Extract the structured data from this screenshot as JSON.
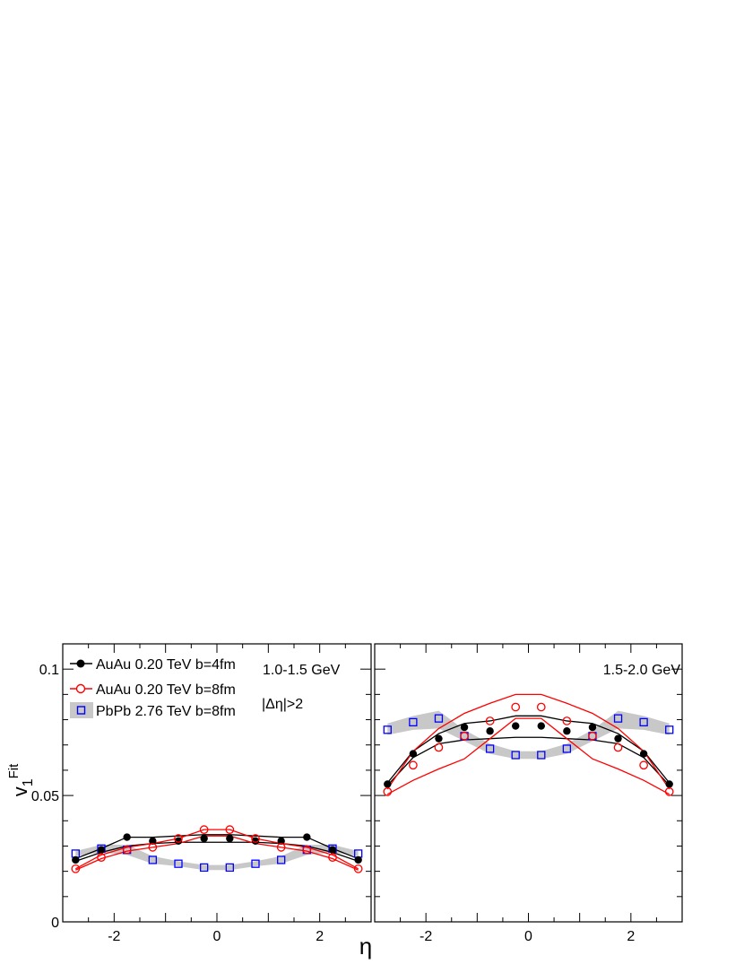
{
  "figure": {
    "ylabel_base": "v",
    "ylabel_sub": "1",
    "ylabel_sup": "Fit",
    "xlabel": "η"
  },
  "legend": [
    {
      "label": "AuAu 0.20 TeV b=4fm",
      "color": "#000000",
      "marker": "filled-circle"
    },
    {
      "label": "AuAu 0.20 TeV b=8fm",
      "color": "#ff0000",
      "marker": "open-circle"
    },
    {
      "label": "PbPb 2.76 TeV b=8fm",
      "color": "#0000ff",
      "marker": "open-square",
      "band_color": "#c8c8c8"
    }
  ],
  "chart_data": [
    {
      "type": "scatter",
      "panel": "left",
      "annotations": [
        "1.0-1.5 GeV",
        "|Δη|>2"
      ],
      "xlim": [
        -3,
        3
      ],
      "ylim": [
        0,
        0.11
      ],
      "x_ticks": [
        "-2",
        "0",
        "2"
      ],
      "y_ticks": [
        "0",
        "0.05",
        "0.1"
      ],
      "grid": false,
      "legend_position": "top-left",
      "x": [
        -2.75,
        -2.25,
        -1.75,
        -1.25,
        -0.75,
        -0.25,
        0.25,
        0.75,
        1.25,
        1.75,
        2.25,
        2.75
      ],
      "series": [
        {
          "name": "AuAu 0.20 TeV b=4fm",
          "values": [
            0.0245,
            0.0285,
            0.0335,
            0.032,
            0.032,
            0.033,
            0.033,
            0.032,
            0.032,
            0.0335,
            0.0285,
            0.0245
          ],
          "band_low": [
            0.024,
            0.0275,
            0.03,
            0.031,
            0.0315,
            0.0315,
            0.0315,
            0.0315,
            0.031,
            0.03,
            0.0275,
            0.024
          ],
          "band_high": [
            0.025,
            0.029,
            0.0335,
            0.0335,
            0.034,
            0.0345,
            0.0345,
            0.034,
            0.0335,
            0.0335,
            0.029,
            0.025
          ]
        },
        {
          "name": "AuAu 0.20 TeV b=8fm",
          "values": [
            0.021,
            0.0255,
            0.0285,
            0.0295,
            0.033,
            0.0365,
            0.0365,
            0.033,
            0.0295,
            0.0285,
            0.0255,
            0.021
          ],
          "band_low": [
            0.0205,
            0.025,
            0.028,
            0.0295,
            0.031,
            0.034,
            0.034,
            0.031,
            0.0295,
            0.028,
            0.025,
            0.0205
          ],
          "band_high": [
            0.021,
            0.0265,
            0.0295,
            0.031,
            0.033,
            0.0365,
            0.0365,
            0.033,
            0.031,
            0.0295,
            0.0265,
            0.021
          ]
        },
        {
          "name": "PbPb 2.76 TeV b=8fm",
          "values": [
            0.027,
            0.029,
            0.0285,
            0.0245,
            0.023,
            0.0215,
            0.0215,
            0.023,
            0.0245,
            0.0285,
            0.029,
            0.027
          ],
          "band_low": [
            0.026,
            0.0275,
            0.0265,
            0.023,
            0.022,
            0.0205,
            0.0205,
            0.022,
            0.023,
            0.0265,
            0.0275,
            0.026
          ],
          "band_high": [
            0.028,
            0.0305,
            0.0305,
            0.026,
            0.024,
            0.0225,
            0.0225,
            0.024,
            0.026,
            0.0305,
            0.0305,
            0.028
          ]
        }
      ]
    },
    {
      "type": "scatter",
      "panel": "right",
      "annotations": [
        "1.5-2.0 GeV"
      ],
      "xlim": [
        -3,
        3
      ],
      "ylim": [
        0,
        0.11
      ],
      "x_ticks": [
        "-2",
        "0",
        "2"
      ],
      "y_ticks": [],
      "grid": false,
      "x": [
        -2.75,
        -2.25,
        -1.75,
        -1.25,
        -0.75,
        -0.25,
        0.25,
        0.75,
        1.25,
        1.75,
        2.25,
        2.75
      ],
      "series": [
        {
          "name": "AuAu 0.20 TeV b=4fm",
          "values": [
            0.0545,
            0.0665,
            0.0725,
            0.077,
            0.0755,
            0.0775,
            0.0775,
            0.0755,
            0.077,
            0.0725,
            0.0665,
            0.0545
          ],
          "band_low": [
            0.054,
            0.065,
            0.0705,
            0.072,
            0.0725,
            0.073,
            0.073,
            0.0725,
            0.072,
            0.0705,
            0.065,
            0.054
          ],
          "band_high": [
            0.055,
            0.0675,
            0.0745,
            0.0785,
            0.0795,
            0.0815,
            0.0815,
            0.0795,
            0.0785,
            0.0745,
            0.0675,
            0.055
          ]
        },
        {
          "name": "AuAu 0.20 TeV b=8fm",
          "values": [
            0.0515,
            0.062,
            0.069,
            0.0735,
            0.0795,
            0.085,
            0.085,
            0.0795,
            0.0735,
            0.069,
            0.062,
            0.0515
          ],
          "band_low": [
            0.0505,
            0.056,
            0.0605,
            0.0645,
            0.0725,
            0.0805,
            0.0805,
            0.0725,
            0.0645,
            0.0605,
            0.056,
            0.0505
          ],
          "band_high": [
            0.0525,
            0.0675,
            0.0765,
            0.0825,
            0.0865,
            0.09,
            0.09,
            0.0865,
            0.0825,
            0.0765,
            0.0675,
            0.0525
          ]
        },
        {
          "name": "PbPb 2.76 TeV b=8fm",
          "values": [
            0.076,
            0.079,
            0.0805,
            0.0735,
            0.0685,
            0.066,
            0.066,
            0.0685,
            0.0735,
            0.0805,
            0.079,
            0.076
          ],
          "band_low": [
            0.074,
            0.076,
            0.0765,
            0.0715,
            0.0665,
            0.0645,
            0.0645,
            0.0665,
            0.0715,
            0.0765,
            0.076,
            0.074
          ],
          "band_high": [
            0.0785,
            0.0815,
            0.0835,
            0.076,
            0.0705,
            0.0675,
            0.0675,
            0.0705,
            0.076,
            0.0835,
            0.0815,
            0.0785
          ]
        }
      ]
    }
  ]
}
